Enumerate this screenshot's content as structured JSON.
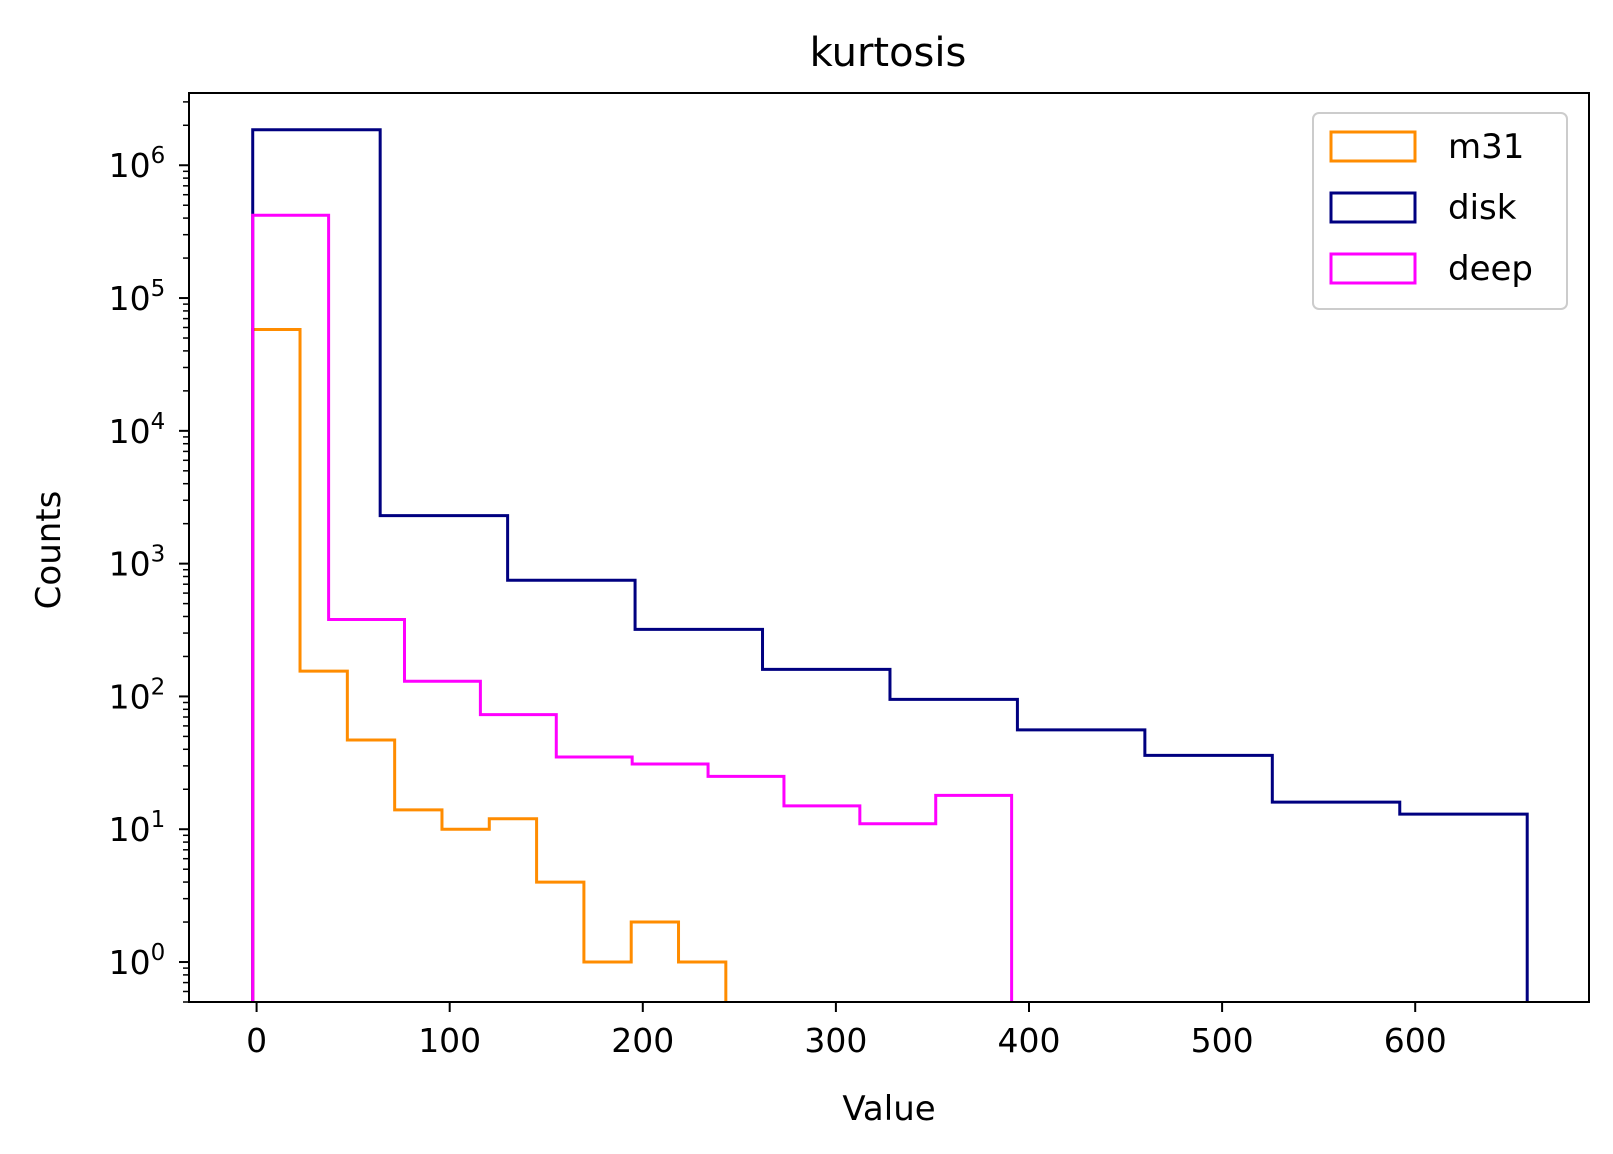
{
  "chart_data": {
    "type": "histogram-step",
    "title": "kurtosis",
    "xlabel": "Value",
    "ylabel": "Counts",
    "yscale": "log",
    "xlim": [
      -35,
      690
    ],
    "ylim": [
      0.5,
      3500000
    ],
    "x_ticks": [
      0,
      100,
      200,
      300,
      400,
      500,
      600
    ],
    "x_tick_labels": [
      "0",
      "100",
      "200",
      "300",
      "400",
      "500",
      "600"
    ],
    "y_ticks": [
      {
        "value": 1,
        "base": "10",
        "exp": "0"
      },
      {
        "value": 10,
        "base": "10",
        "exp": "1"
      },
      {
        "value": 100,
        "base": "10",
        "exp": "2"
      },
      {
        "value": 1000,
        "base": "10",
        "exp": "3"
      },
      {
        "value": 10000,
        "base": "10",
        "exp": "4"
      },
      {
        "value": 100000,
        "base": "10",
        "exp": "5"
      },
      {
        "value": 1000000,
        "base": "10",
        "exp": "6"
      }
    ],
    "legend_position": "top-right",
    "grid": false,
    "series": [
      {
        "name": "m31",
        "color": "#ff8c00",
        "edges": [
          -2,
          22.5,
          47,
          71.5,
          96,
          120.5,
          145,
          169.5,
          194,
          218.5,
          243
        ],
        "counts": [
          58000,
          155,
          47,
          14,
          10,
          12,
          4,
          1,
          2,
          1
        ]
      },
      {
        "name": "disk",
        "color": "#000080",
        "edges": [
          -2,
          64,
          130,
          196,
          262,
          328,
          394,
          460,
          526,
          592,
          658
        ],
        "counts": [
          1850000,
          2300,
          750,
          320,
          160,
          95,
          56,
          36,
          16,
          13
        ]
      },
      {
        "name": "deep",
        "color": "#ff00ff",
        "edges": [
          -2,
          37.3,
          76.6,
          115.9,
          155.2,
          194.5,
          233.8,
          273.1,
          312.4,
          351.7,
          391
        ],
        "counts": [
          420000,
          380,
          130,
          73,
          35,
          31,
          25,
          15,
          11,
          18
        ]
      }
    ]
  }
}
